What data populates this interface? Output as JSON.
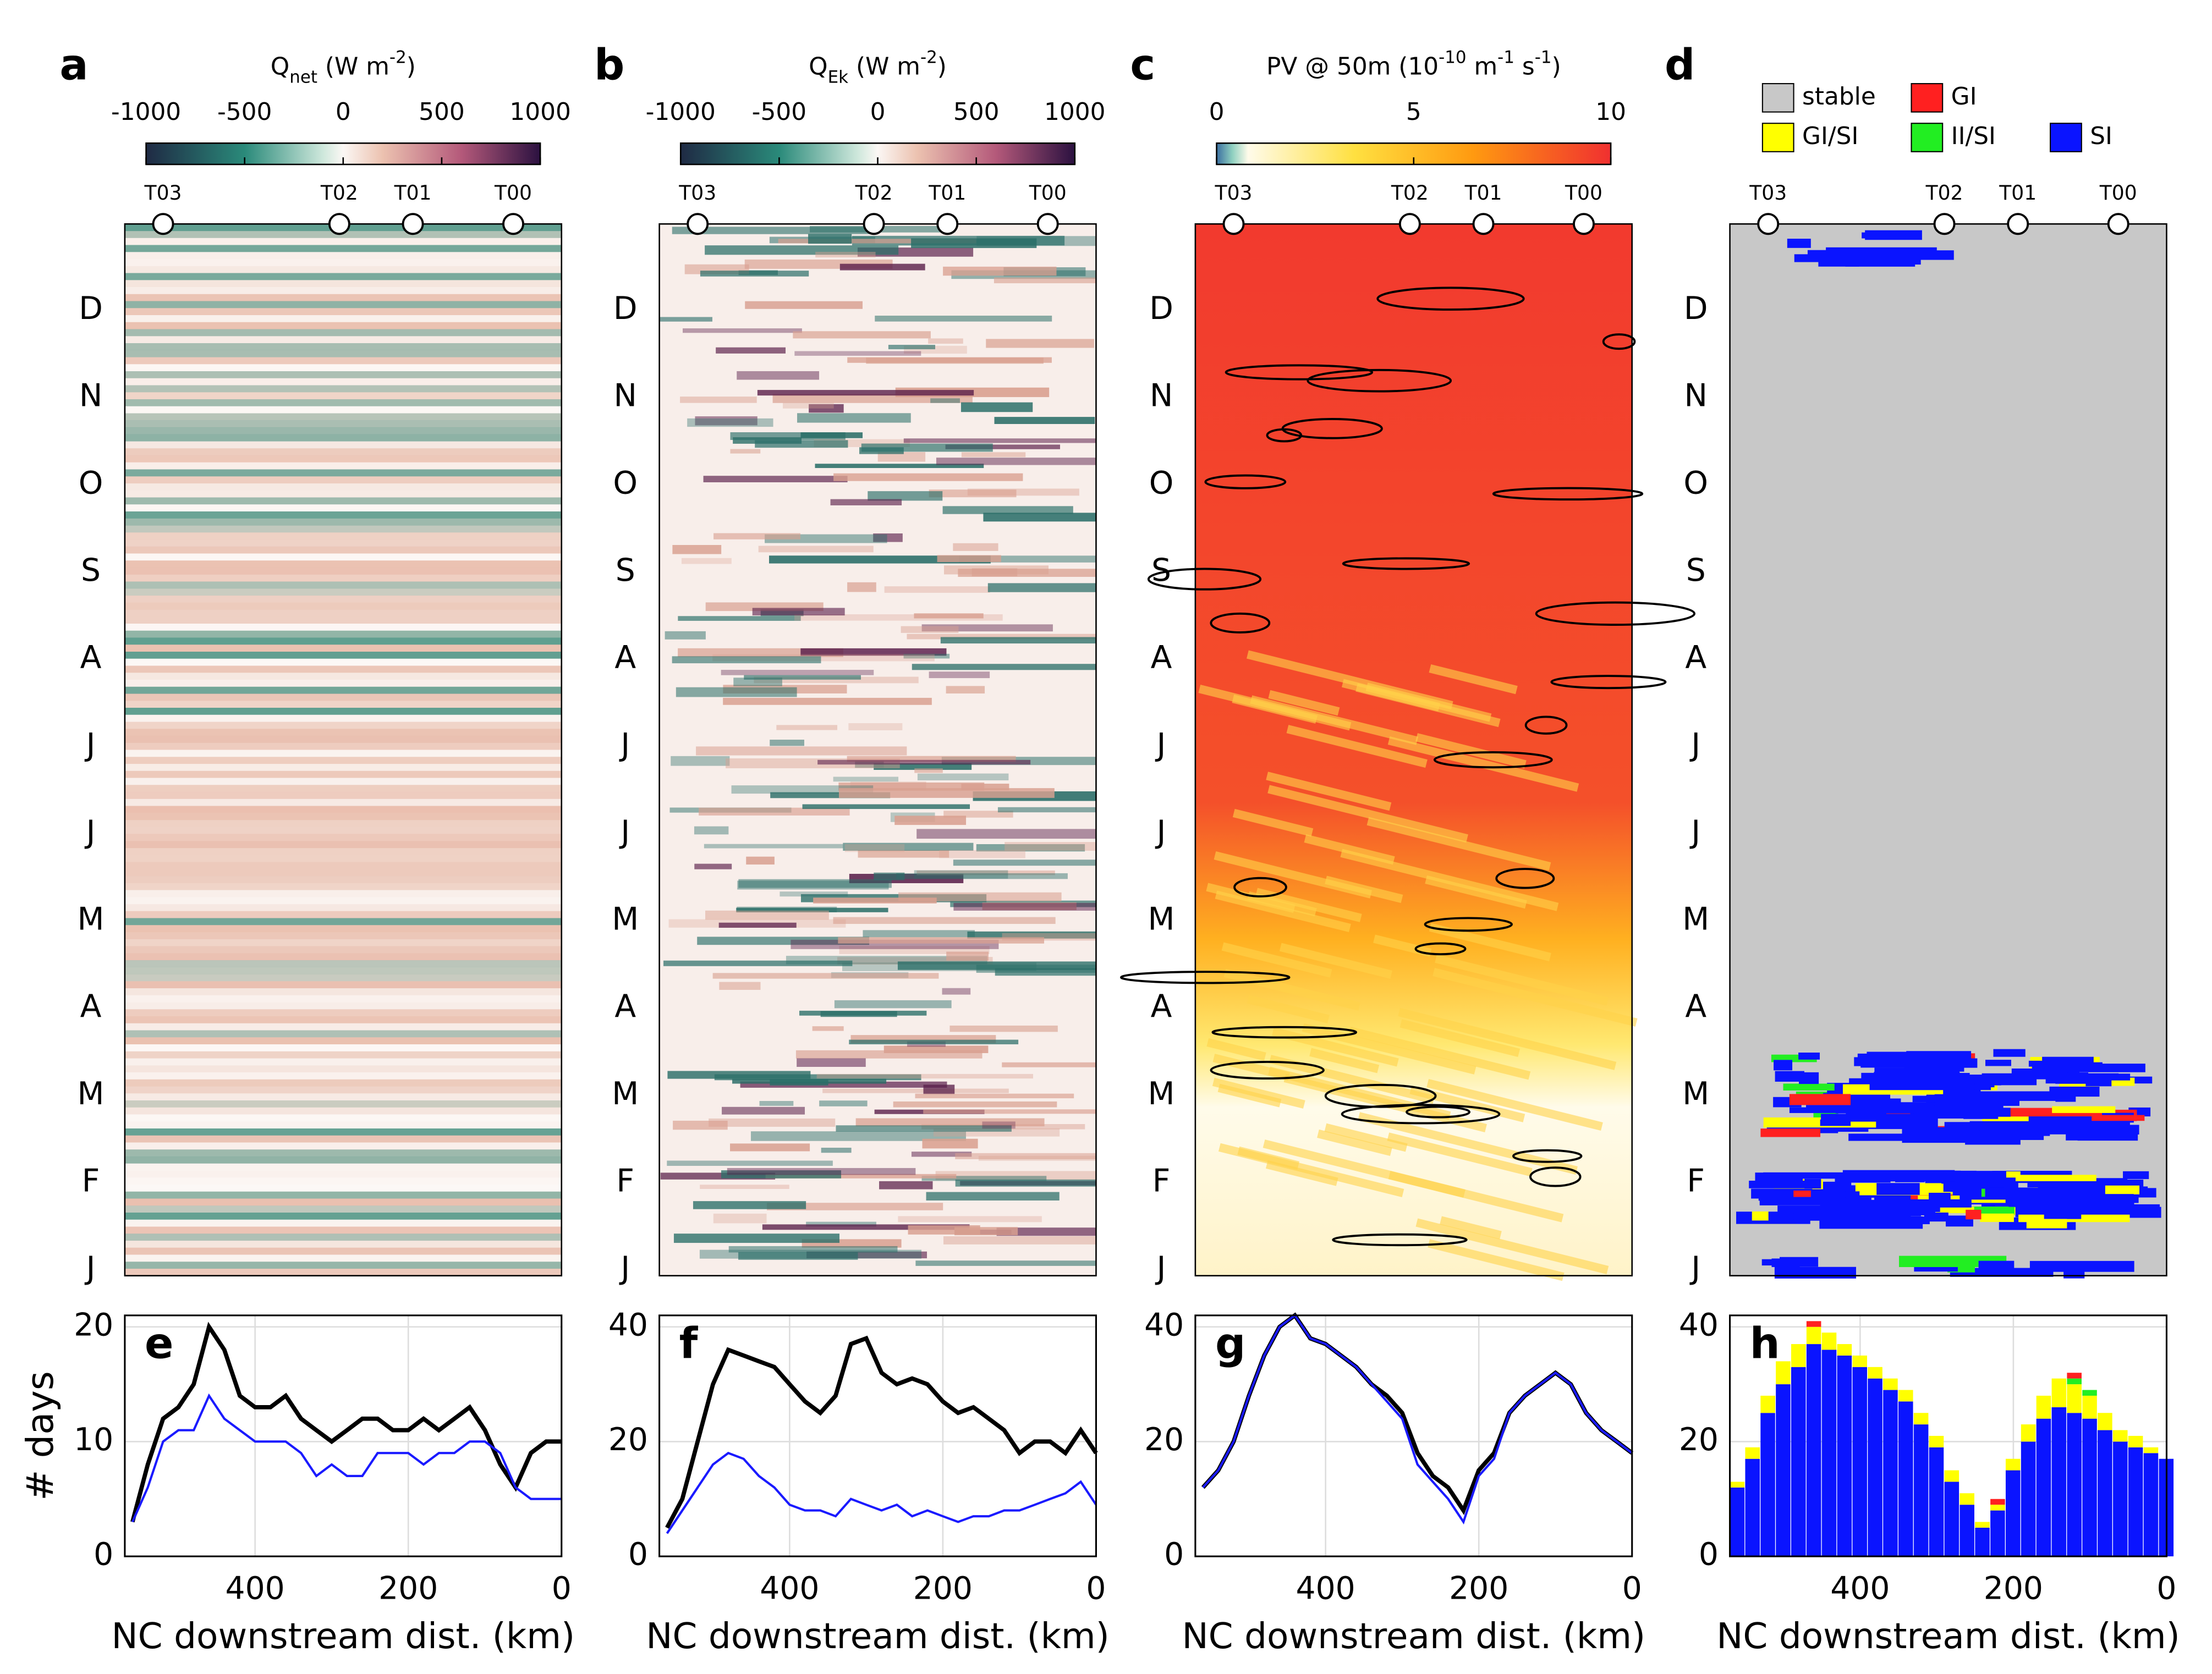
{
  "chart_data": [
    {
      "type": "heatmap",
      "panel_label": "a",
      "colorbar_title": [
        [
          "Q",
          ""
        ],
        [
          "net",
          "sub"
        ],
        [
          " (W m",
          ""
        ],
        [
          "-2",
          "sup"
        ],
        [
          ")",
          ""
        ]
      ],
      "clim": [
        -1000,
        1000
      ],
      "cticks": [
        -1000,
        -500,
        0,
        500,
        1000
      ],
      "stations": [
        "T03",
        "T02",
        "T01",
        "T00"
      ],
      "station_x": [
        520,
        290,
        194,
        63
      ],
      "xlim": [
        570,
        0
      ],
      "months": [
        "J",
        "F",
        "M",
        "A",
        "M",
        "J",
        "J",
        "A",
        "S",
        "O",
        "N",
        "D"
      ]
    },
    {
      "type": "heatmap",
      "panel_label": "b",
      "colorbar_title": [
        [
          "Q",
          ""
        ],
        [
          "Ek",
          "sub"
        ],
        [
          " (W m",
          ""
        ],
        [
          "-2",
          "sup"
        ],
        [
          ")",
          ""
        ]
      ],
      "clim": [
        -1000,
        1000
      ],
      "cticks": [
        -1000,
        -500,
        0,
        500,
        1000
      ],
      "stations": [
        "T03",
        "T02",
        "T01",
        "T00"
      ],
      "station_x": [
        520,
        290,
        194,
        63
      ],
      "xlim": [
        570,
        0
      ],
      "months": [
        "J",
        "F",
        "M",
        "A",
        "M",
        "J",
        "J",
        "A",
        "S",
        "O",
        "N",
        "D"
      ]
    },
    {
      "type": "heatmap",
      "panel_label": "c",
      "colorbar_title": [
        [
          "PV @ 50m (10",
          ""
        ],
        [
          "-10",
          "sup"
        ],
        [
          " m",
          ""
        ],
        [
          "-1",
          "sup"
        ],
        [
          " s",
          ""
        ],
        [
          "-1",
          "sup"
        ],
        [
          ")",
          ""
        ]
      ],
      "clim": [
        0,
        10
      ],
      "cticks": [
        0,
        5,
        10
      ],
      "stations": [
        "T03",
        "T02",
        "T01",
        "T00"
      ],
      "station_x": [
        520,
        290,
        194,
        63
      ],
      "xlim": [
        570,
        0
      ],
      "months": [
        "J",
        "F",
        "M",
        "A",
        "M",
        "J",
        "J",
        "A",
        "S",
        "O",
        "N",
        "D"
      ]
    },
    {
      "type": "categorymap",
      "panel_label": "d",
      "legend": [
        {
          "name": "stable",
          "color": "#c8c8c8"
        },
        {
          "name": "GI",
          "color": "#ff2020"
        },
        {
          "name": "GI/SI",
          "color": "#ffff00"
        },
        {
          "name": "II/SI",
          "color": "#22ee22"
        },
        {
          "name": "SI",
          "color": "#0a14ff"
        }
      ],
      "stations": [
        "T03",
        "T02",
        "T01",
        "T00"
      ],
      "station_x": [
        520,
        290,
        194,
        63
      ],
      "xlim": [
        570,
        0
      ],
      "months": [
        "J",
        "F",
        "M",
        "A",
        "M",
        "J",
        "J",
        "A",
        "S",
        "O",
        "N",
        "D"
      ]
    },
    {
      "type": "line",
      "panel_label": "e",
      "ylabel": "# days",
      "xlabel": "NC downstream dist. (km)",
      "xlim": [
        570,
        0
      ],
      "xticks": [
        400,
        200,
        0
      ],
      "ylim": [
        0,
        21
      ],
      "yticks": [
        0,
        10,
        20
      ],
      "x": [
        560,
        540,
        520,
        500,
        480,
        460,
        440,
        420,
        400,
        380,
        360,
        340,
        320,
        300,
        280,
        260,
        240,
        220,
        200,
        180,
        160,
        140,
        120,
        100,
        80,
        60,
        40,
        20,
        0
      ],
      "series": [
        {
          "color": "#000000",
          "values": [
            3,
            8,
            12,
            13,
            15,
            20,
            18,
            14,
            13,
            13,
            14,
            12,
            11,
            10,
            11,
            12,
            12,
            11,
            11,
            12,
            11,
            12,
            13,
            11,
            8,
            6,
            9,
            10,
            10
          ]
        },
        {
          "color": "#1a1aff",
          "values": [
            3,
            6,
            10,
            11,
            11,
            14,
            12,
            11,
            10,
            10,
            10,
            9,
            7,
            8,
            7,
            7,
            9,
            9,
            9,
            8,
            9,
            9,
            10,
            10,
            9,
            6,
            5,
            5,
            5
          ]
        }
      ]
    },
    {
      "type": "line",
      "panel_label": "f",
      "xlabel": "NC downstream dist. (km)",
      "xlim": [
        570,
        0
      ],
      "xticks": [
        400,
        200,
        0
      ],
      "ylim": [
        0,
        42
      ],
      "yticks": [
        0,
        20,
        40
      ],
      "x": [
        560,
        540,
        520,
        500,
        480,
        460,
        440,
        420,
        400,
        380,
        360,
        340,
        320,
        300,
        280,
        260,
        240,
        220,
        200,
        180,
        160,
        140,
        120,
        100,
        80,
        60,
        40,
        20,
        0
      ],
      "series": [
        {
          "color": "#000000",
          "values": [
            5,
            10,
            20,
            30,
            36,
            35,
            34,
            33,
            30,
            27,
            25,
            28,
            37,
            38,
            32,
            30,
            31,
            30,
            27,
            25,
            26,
            24,
            22,
            18,
            20,
            20,
            18,
            22,
            18
          ]
        },
        {
          "color": "#1a1aff",
          "values": [
            4,
            8,
            12,
            16,
            18,
            17,
            14,
            12,
            9,
            8,
            8,
            7,
            10,
            9,
            8,
            9,
            7,
            8,
            7,
            6,
            7,
            7,
            8,
            8,
            9,
            10,
            11,
            13,
            9
          ]
        }
      ]
    },
    {
      "type": "line",
      "panel_label": "g",
      "xlabel": "NC downstream dist. (km)",
      "xlim": [
        570,
        0
      ],
      "xticks": [
        400,
        200,
        0
      ],
      "ylim": [
        0,
        42
      ],
      "yticks": [
        0,
        20,
        40
      ],
      "x": [
        560,
        540,
        520,
        500,
        480,
        460,
        440,
        420,
        400,
        380,
        360,
        340,
        320,
        300,
        280,
        260,
        240,
        220,
        200,
        180,
        160,
        140,
        120,
        100,
        80,
        60,
        40,
        20,
        0
      ],
      "series": [
        {
          "color": "#000000",
          "values": [
            12,
            15,
            20,
            28,
            35,
            40,
            42,
            38,
            37,
            35,
            33,
            30,
            28,
            25,
            18,
            14,
            12,
            8,
            15,
            18,
            25,
            28,
            30,
            32,
            30,
            25,
            22,
            20,
            18
          ]
        },
        {
          "color": "#1a1aff",
          "values": [
            12,
            15,
            20,
            28,
            35,
            40,
            42,
            38,
            37,
            35,
            33,
            30,
            27,
            24,
            16,
            13,
            10,
            6,
            14,
            17,
            25,
            28,
            30,
            32,
            30,
            25,
            22,
            20,
            18
          ]
        }
      ]
    },
    {
      "type": "stackedbar",
      "panel_label": "h",
      "xlabel": "NC downstream dist. (km)",
      "xlim": [
        570,
        0
      ],
      "xticks": [
        400,
        200,
        0
      ],
      "ylim": [
        0,
        42
      ],
      "yticks": [
        0,
        20,
        40
      ],
      "x": [
        560,
        540,
        520,
        500,
        480,
        460,
        440,
        420,
        400,
        380,
        360,
        340,
        320,
        300,
        280,
        260,
        240,
        220,
        200,
        180,
        160,
        140,
        120,
        100,
        80,
        60,
        40,
        20,
        0
      ],
      "series": [
        {
          "color": "#0a14ff",
          "values": [
            12,
            17,
            25,
            30,
            33,
            37,
            36,
            35,
            33,
            31,
            29,
            27,
            23,
            19,
            13,
            9,
            5,
            8,
            15,
            20,
            24,
            26,
            25,
            24,
            22,
            20,
            19,
            18,
            17
          ]
        },
        {
          "color": "#ffff00",
          "values": [
            1,
            2,
            3,
            4,
            4,
            3,
            3,
            2,
            2,
            2,
            2,
            2,
            2,
            2,
            2,
            2,
            1,
            1,
            2,
            3,
            4,
            5,
            5,
            4,
            3,
            2,
            2,
            1,
            0
          ]
        },
        {
          "color": "#22ee22",
          "values": [
            0,
            0,
            0,
            0,
            0,
            0,
            0,
            0,
            0,
            0,
            0,
            0,
            0,
            0,
            0,
            0,
            0,
            0,
            0,
            0,
            0,
            0,
            1,
            1,
            0,
            0,
            0,
            0,
            0
          ]
        },
        {
          "color": "#ff2020",
          "values": [
            0,
            0,
            0,
            0,
            0,
            1,
            0,
            0,
            0,
            0,
            0,
            0,
            0,
            0,
            0,
            0,
            0,
            1,
            0,
            0,
            0,
            0,
            1,
            0,
            0,
            0,
            0,
            0,
            0
          ]
        }
      ]
    }
  ]
}
